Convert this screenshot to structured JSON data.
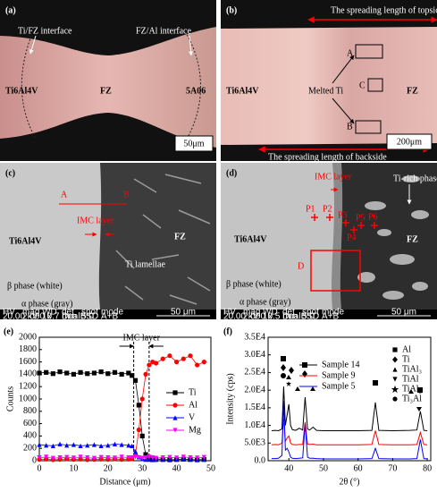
{
  "panels": {
    "a": {
      "label": "(a)",
      "ti_fz": "Ti/FZ interface",
      "fz_al": "FZ/Al interface",
      "left": "Ti6Al4V",
      "middle": "FZ",
      "right": "5A06",
      "scale": "50μm"
    },
    "b": {
      "label": "(b)",
      "top": "The spreading length of topside",
      "bottom": "The spreading length of backside",
      "left": "Ti6Al4V",
      "melted": "Melted Ti",
      "box_a": "A",
      "box_b": "B",
      "box_c": "C",
      "right": "FZ",
      "scale": "200μm"
    },
    "c": {
      "label": "(c)",
      "point_a": "A",
      "point_b": "B",
      "imc": "IMC layer",
      "left": "Ti6Al4V",
      "right": "FZ",
      "lamellae": "Ti lamellae",
      "beta": "β phase (white)",
      "alpha": "α phase (gray)",
      "info": [
        [
          "HV",
          "20.00 kV"
        ],
        [
          "mag",
          "2 000 x"
        ],
        [
          "WD",
          "10.7 mm"
        ],
        [
          "det",
          "DualBSD"
        ],
        [
          "spot",
          "5.0"
        ],
        [
          "mode",
          "A+B"
        ]
      ],
      "scale": "50 μm"
    },
    "d": {
      "label": "(d)",
      "imc": "IMC layer",
      "ti_rich": "Ti-rich phase",
      "points": [
        "P1",
        "P2",
        "P3",
        "P4",
        "P5",
        "P6"
      ],
      "left": "Ti6Al4V",
      "right": "FZ",
      "region": "D",
      "beta": "β phase (white)",
      "alpha": "α phase (gray)",
      "info": [
        [
          "HV",
          "20.00 kV"
        ],
        [
          "mag",
          "2 000 x"
        ],
        [
          "WD",
          "10.5 mm"
        ],
        [
          "det",
          "DualBSD"
        ],
        [
          "spot",
          "5.0"
        ],
        [
          "mode",
          "A+B"
        ]
      ],
      "scale": "50 μm"
    }
  },
  "chart_data": [
    {
      "type": "line",
      "label": "(e)",
      "x_label": "Distance (μm)",
      "y_label": "Counts",
      "legend": "center right",
      "xlim": [
        0,
        50
      ],
      "xticks": [
        0,
        10,
        20,
        30,
        40,
        50
      ],
      "ylim": [
        0,
        2000
      ],
      "yticks": [
        0,
        200,
        400,
        600,
        800,
        1000,
        1200,
        1400,
        1600,
        1800,
        2000
      ],
      "annotation": {
        "text": "IMC layer",
        "x": [
          27.5,
          32
        ]
      },
      "x": [
        0,
        2,
        4,
        6,
        8,
        10,
        12,
        14,
        16,
        18,
        20,
        22,
        24,
        26,
        27,
        28,
        29,
        30,
        31,
        32,
        33,
        34,
        36,
        38,
        40,
        42,
        44,
        46,
        48
      ],
      "series": [
        {
          "name": "Ti",
          "color": "#000000",
          "marker": "square",
          "values": [
            1420,
            1430,
            1410,
            1440,
            1420,
            1400,
            1430,
            1410,
            1420,
            1440,
            1410,
            1430,
            1400,
            1420,
            1380,
            1300,
            900,
            400,
            100,
            50,
            30,
            20,
            20,
            15,
            20,
            25,
            20,
            15,
            20
          ]
        },
        {
          "name": "Al",
          "color": "#ff0000",
          "marker": "circle",
          "values": [
            20,
            25,
            15,
            20,
            30,
            20,
            25,
            15,
            20,
            25,
            20,
            30,
            20,
            25,
            30,
            100,
            500,
            1000,
            1400,
            1550,
            1600,
            1580,
            1650,
            1700,
            1600,
            1650,
            1700,
            1550,
            1600
          ]
        },
        {
          "name": "V",
          "color": "#0000ff",
          "marker": "triangle",
          "values": [
            260,
            250,
            240,
            270,
            250,
            260,
            240,
            250,
            260,
            240,
            250,
            270,
            260,
            250,
            240,
            150,
            60,
            30,
            20,
            20,
            15,
            20,
            20,
            15,
            20,
            25,
            20,
            15,
            20
          ]
        },
        {
          "name": "Mg",
          "color": "#ff00ff",
          "marker": "down-triangle",
          "values": [
            50,
            60,
            40,
            50,
            55,
            45,
            60,
            50,
            40,
            55,
            50,
            45,
            60,
            50,
            50,
            60,
            50,
            40,
            50,
            60,
            50,
            40,
            50,
            55,
            45,
            60,
            50,
            45,
            55
          ]
        }
      ]
    },
    {
      "type": "line",
      "label": "(f)",
      "x_label": "2θ (°)",
      "y_label": "Intensity (cps)",
      "legend": "upper center",
      "xlim": [
        34,
        81
      ],
      "xticks": [
        40,
        50,
        60,
        70,
        80
      ],
      "ylim": [
        0,
        35000
      ],
      "yticks": [
        {
          "value": 0,
          "label": "0.0"
        },
        {
          "value": 5000,
          "label": "5.0E3"
        },
        {
          "value": 10000,
          "label": "1.0E4"
        },
        {
          "value": 15000,
          "label": "1.5E4"
        },
        {
          "value": 20000,
          "label": "2.0E4"
        },
        {
          "value": 25000,
          "label": "2.5E4"
        },
        {
          "value": 30000,
          "label": "3.0E4"
        },
        {
          "value": 35000,
          "label": "3.5E4"
        }
      ],
      "phases": [
        "Al",
        "Ti",
        "TiAl₃",
        "TiAl",
        "TiAl₂",
        "Ti₃Al"
      ],
      "x": [
        35,
        36,
        37,
        38,
        38.5,
        39,
        39.5,
        40,
        40.5,
        41,
        42,
        43,
        44,
        44.7,
        45.4,
        46,
        47,
        48,
        50,
        55,
        60,
        64,
        65,
        66,
        70,
        75,
        77,
        78,
        79,
        80
      ],
      "series": [
        {
          "name": "Sample 14",
          "color": "#000000",
          "values": [
            8500,
            8600,
            8500,
            9000,
            21000,
            10000,
            13000,
            16000,
            10000,
            8800,
            8600,
            9200,
            8700,
            18000,
            9000,
            8700,
            9500,
            8600,
            8500,
            8500,
            8500,
            8600,
            16500,
            8600,
            8500,
            8600,
            8700,
            14000,
            8600,
            8500
          ]
        },
        {
          "name": "Sample 9",
          "color": "#ff0000",
          "values": [
            4500,
            4600,
            4500,
            5000,
            12000,
            5500,
            6500,
            7000,
            5000,
            4600,
            4500,
            4600,
            4600,
            11000,
            4700,
            4600,
            4700,
            4500,
            4500,
            4500,
            4500,
            4600,
            8500,
            4600,
            4500,
            4500,
            4600,
            8000,
            4600,
            4500
          ]
        },
        {
          "name": "Sample 5",
          "color": "#0000ff",
          "values": [
            600,
            600,
            700,
            1500,
            17000,
            3000,
            3500,
            2500,
            1000,
            700,
            600,
            700,
            800,
            10500,
            1000,
            700,
            700,
            600,
            500,
            500,
            500,
            600,
            3500,
            600,
            500,
            500,
            600,
            6000,
            600,
            500
          ]
        }
      ]
    }
  ]
}
